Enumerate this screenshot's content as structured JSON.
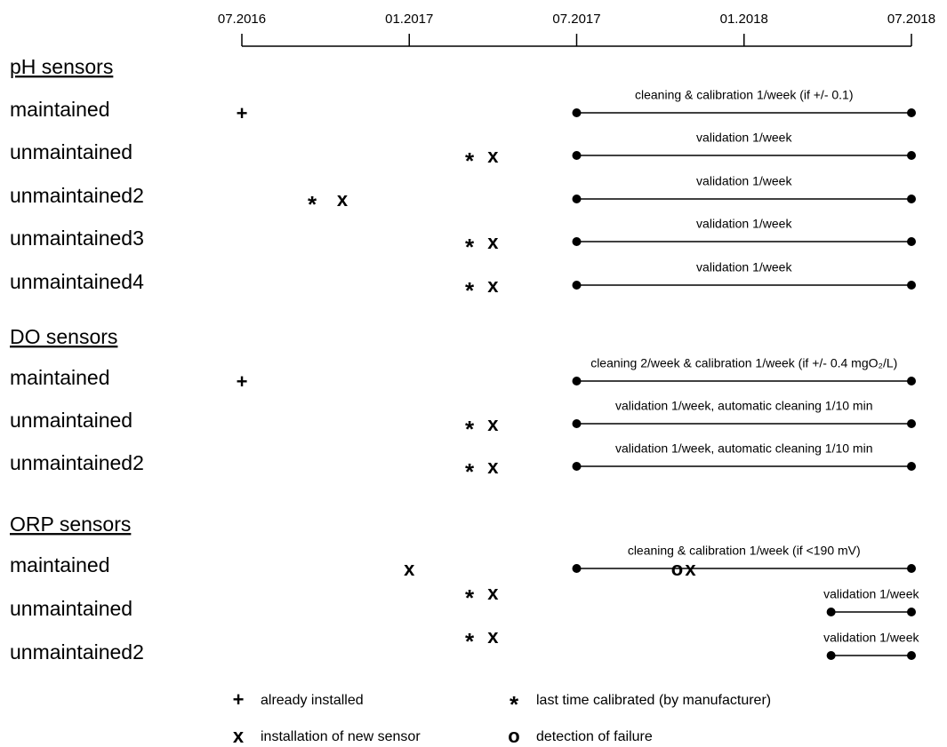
{
  "chart_data": {
    "type": "timeline",
    "xlim": [
      2016.5,
      2018.5
    ],
    "xticks": [
      {
        "value": 2016.5,
        "label": "07.2016"
      },
      {
        "value": 2017.0,
        "label": "01.2017"
      },
      {
        "value": 2017.5,
        "label": "07.2017"
      },
      {
        "value": 2018.0,
        "label": "01.2018"
      },
      {
        "value": 2018.5,
        "label": "07.2018"
      }
    ],
    "groups": [
      {
        "title": "pH sensors",
        "rows": [
          {
            "label": "maintained",
            "markers": [
              {
                "symbol": "+",
                "x": 2016.5
              }
            ],
            "interval": {
              "start": 2017.5,
              "end": 2018.5,
              "label": "cleaning & calibration 1/week (if +/- 0.1)"
            }
          },
          {
            "label": "unmaintained",
            "markers": [
              {
                "symbol": "*",
                "x": 2017.18
              },
              {
                "symbol": "x",
                "x": 2017.25
              }
            ],
            "interval": {
              "start": 2017.5,
              "end": 2018.5,
              "label": "validation 1/week"
            }
          },
          {
            "label": "unmaintained2",
            "markers": [
              {
                "symbol": "*",
                "x": 2016.71
              },
              {
                "symbol": "x",
                "x": 2016.8
              }
            ],
            "interval": {
              "start": 2017.5,
              "end": 2018.5,
              "label": "validation 1/week"
            }
          },
          {
            "label": "unmaintained3",
            "markers": [
              {
                "symbol": "*",
                "x": 2017.18
              },
              {
                "symbol": "x",
                "x": 2017.25
              }
            ],
            "interval": {
              "start": 2017.5,
              "end": 2018.5,
              "label": "validation 1/week"
            }
          },
          {
            "label": "unmaintained4",
            "markers": [
              {
                "symbol": "*",
                "x": 2017.18
              },
              {
                "symbol": "x",
                "x": 2017.25
              }
            ],
            "interval": {
              "start": 2017.5,
              "end": 2018.5,
              "label": "validation 1/week"
            }
          }
        ]
      },
      {
        "title": "DO sensors",
        "rows": [
          {
            "label": "maintained",
            "markers": [
              {
                "symbol": "+",
                "x": 2016.5
              }
            ],
            "interval": {
              "start": 2017.5,
              "end": 2018.5,
              "label": "cleaning 2/week & calibration 1/week (if +/- 0.4 mgO₂/L)"
            }
          },
          {
            "label": "unmaintained",
            "markers": [
              {
                "symbol": "*",
                "x": 2017.18
              },
              {
                "symbol": "x",
                "x": 2017.25
              }
            ],
            "interval": {
              "start": 2017.5,
              "end": 2018.5,
              "label": "validation 1/week, automatic cleaning 1/10 min"
            }
          },
          {
            "label": "unmaintained2",
            "markers": [
              {
                "symbol": "*",
                "x": 2017.18
              },
              {
                "symbol": "x",
                "x": 2017.25
              }
            ],
            "interval": {
              "start": 2017.5,
              "end": 2018.5,
              "label": "validation 1/week, automatic cleaning 1/10 min"
            }
          }
        ]
      },
      {
        "title": "ORP sensors",
        "rows": [
          {
            "label": "maintained",
            "markers": [
              {
                "symbol": "x",
                "x": 2017.0
              },
              {
                "symbol": "o",
                "x": 2017.8
              },
              {
                "symbol": "x",
                "x": 2017.84
              }
            ],
            "interval": {
              "start": 2017.5,
              "end": 2018.5,
              "label": "cleaning & calibration 1/week (if <190 mV)"
            }
          },
          {
            "label": "unmaintained",
            "markers": [
              {
                "symbol": "*",
                "x": 2017.18
              },
              {
                "symbol": "x",
                "x": 2017.25
              }
            ],
            "interval": {
              "start": 2018.26,
              "end": 2018.5,
              "label": "validation 1/week"
            }
          },
          {
            "label": "unmaintained2",
            "markers": [
              {
                "symbol": "*",
                "x": 2017.18
              },
              {
                "symbol": "x",
                "x": 2017.25
              }
            ],
            "interval": {
              "start": 2018.26,
              "end": 2018.5,
              "label": "validation 1/week"
            }
          }
        ]
      }
    ],
    "legend": [
      {
        "symbol": "+",
        "label": "already installed"
      },
      {
        "symbol": "*",
        "label": "last time calibrated (by manufacturer)"
      },
      {
        "symbol": "x",
        "label": "installation of new sensor"
      },
      {
        "symbol": "o",
        "label": "detection of failure"
      }
    ]
  }
}
